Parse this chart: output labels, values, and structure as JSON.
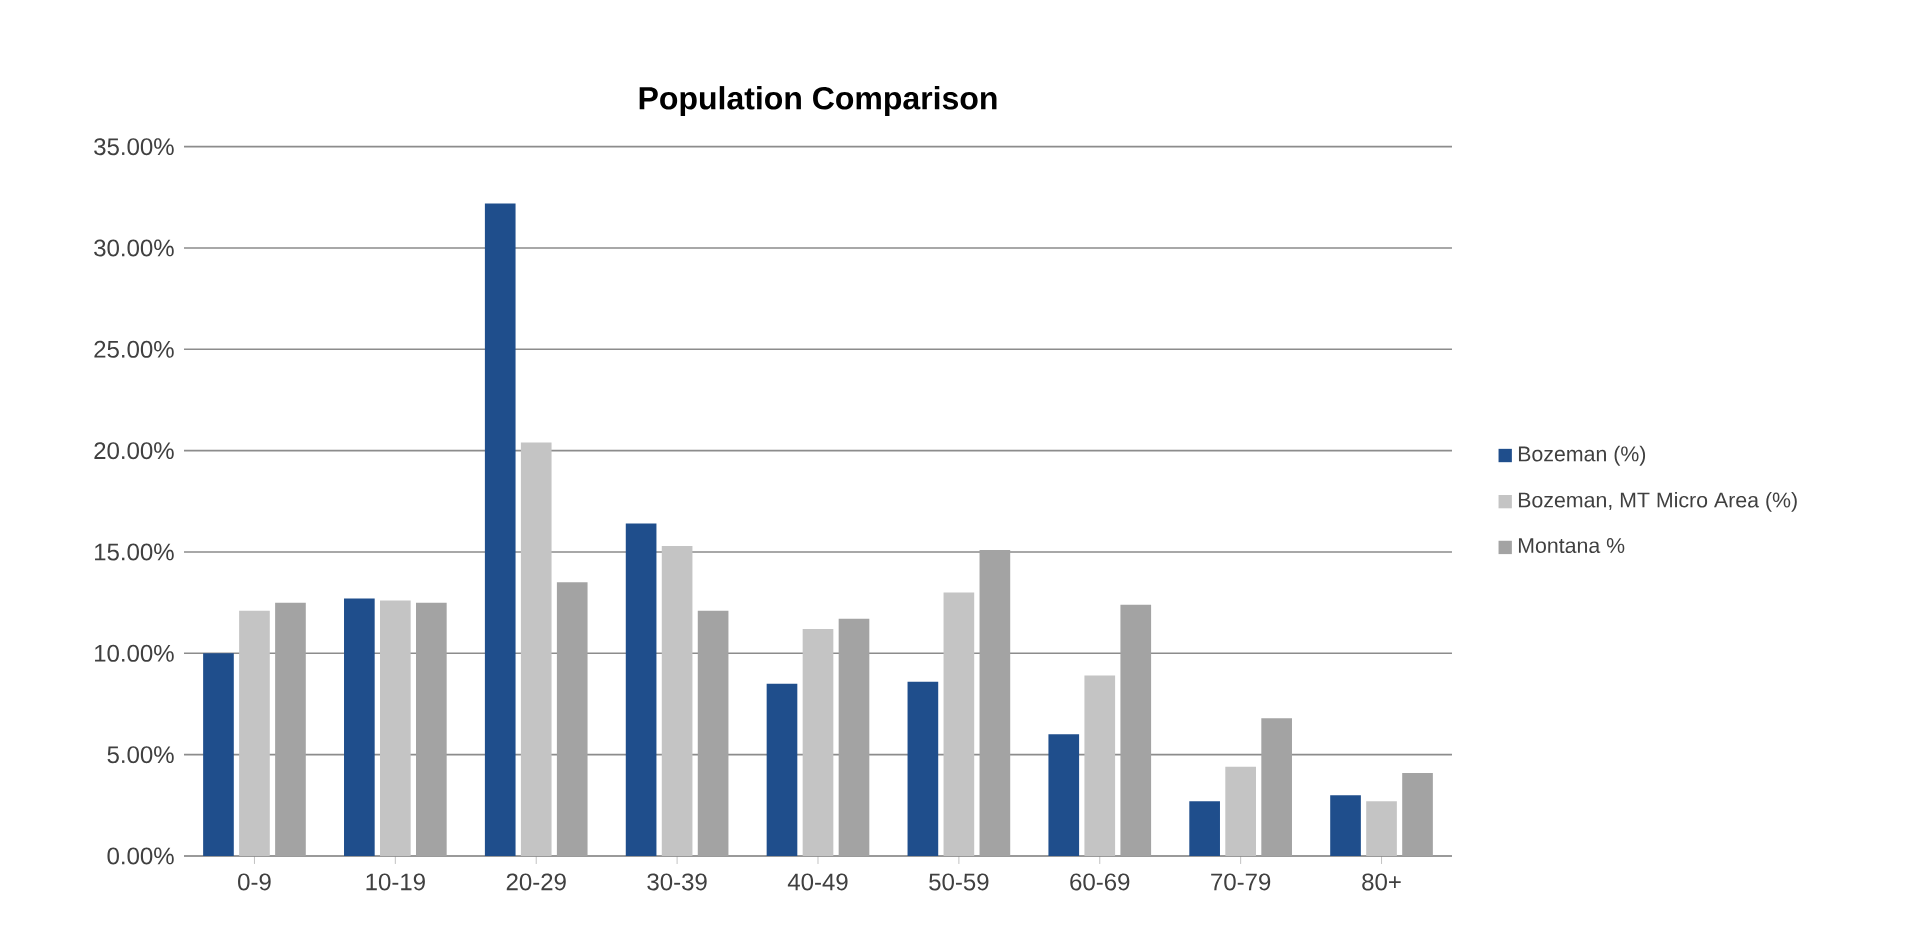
{
  "chart_data": {
    "type": "bar",
    "title": "Population Comparison",
    "categories": [
      "0-9",
      "10-19",
      "20-29",
      "30-39",
      "40-49",
      "50-59",
      "60-69",
      "70-79",
      "80+"
    ],
    "series": [
      {
        "name": "Bozeman (%)",
        "color": "#1f4e8c",
        "values": [
          10.0,
          12.7,
          32.2,
          16.4,
          8.5,
          8.6,
          6.0,
          2.7,
          3.0
        ]
      },
      {
        "name": "Bozeman, MT Micro Area (%)",
        "color": "#c4c4c4",
        "values": [
          12.1,
          12.6,
          20.4,
          15.3,
          11.2,
          13.0,
          8.9,
          4.4,
          2.7
        ]
      },
      {
        "name": "Montana %",
        "color": "#a3a3a3",
        "values": [
          12.5,
          12.5,
          13.5,
          12.1,
          11.7,
          15.1,
          12.4,
          6.8,
          4.1
        ]
      }
    ],
    "ylim": [
      0,
      35
    ],
    "yticks": [
      {
        "value": 0,
        "label": "0.00%"
      },
      {
        "value": 5,
        "label": "5.00%"
      },
      {
        "value": 10,
        "label": "10.00%"
      },
      {
        "value": 15,
        "label": "15.00%"
      },
      {
        "value": 20,
        "label": "20.00%"
      },
      {
        "value": 25,
        "label": "25.00%"
      },
      {
        "value": 30,
        "label": "30.00%"
      },
      {
        "value": 35,
        "label": "35.00%"
      }
    ],
    "grid": "y",
    "legend": "right"
  }
}
